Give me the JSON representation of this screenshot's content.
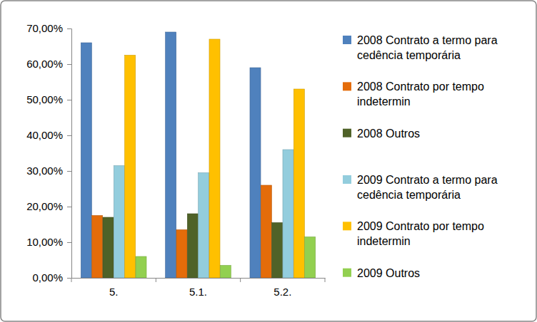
{
  "chart_data": {
    "type": "bar",
    "categories": [
      "5.",
      "5.1.",
      "5.2."
    ],
    "series": [
      {
        "name": "2008 Contrato a termo para cedência temporária",
        "color": "#4f81bd",
        "values": [
          66,
          69,
          59
        ]
      },
      {
        "name": "2008 Contrato por tempo indetermin",
        "color": "#e46c0a",
        "values": [
          17.5,
          13.5,
          26
        ]
      },
      {
        "name": "2008 Outros",
        "color": "#4f6228",
        "values": [
          17,
          18,
          15.5
        ]
      },
      {
        "name": "2009 Contrato a termo para cedência temporária",
        "color": "#93cddd",
        "values": [
          31.5,
          29.5,
          36
        ]
      },
      {
        "name": "2009 Contrato por tempo indetermin",
        "color": "#ffc000",
        "values": [
          62.5,
          67,
          53
        ]
      },
      {
        "name": "2009 Outros",
        "color": "#92d050",
        "values": [
          6,
          3.5,
          11.5
        ]
      }
    ],
    "ylim": [
      0,
      70
    ],
    "yticks": [
      {
        "value": 0,
        "label": "0,00%"
      },
      {
        "value": 10,
        "label": "10,00%"
      },
      {
        "value": 20,
        "label": "20,00%"
      },
      {
        "value": 30,
        "label": "30,00%"
      },
      {
        "value": 40,
        "label": "40,00%"
      },
      {
        "value": 50,
        "label": "50,00%"
      },
      {
        "value": 60,
        "label": "60,00%"
      },
      {
        "value": 70,
        "label": "70,00%"
      }
    ],
    "grid": false,
    "legend": "right"
  }
}
